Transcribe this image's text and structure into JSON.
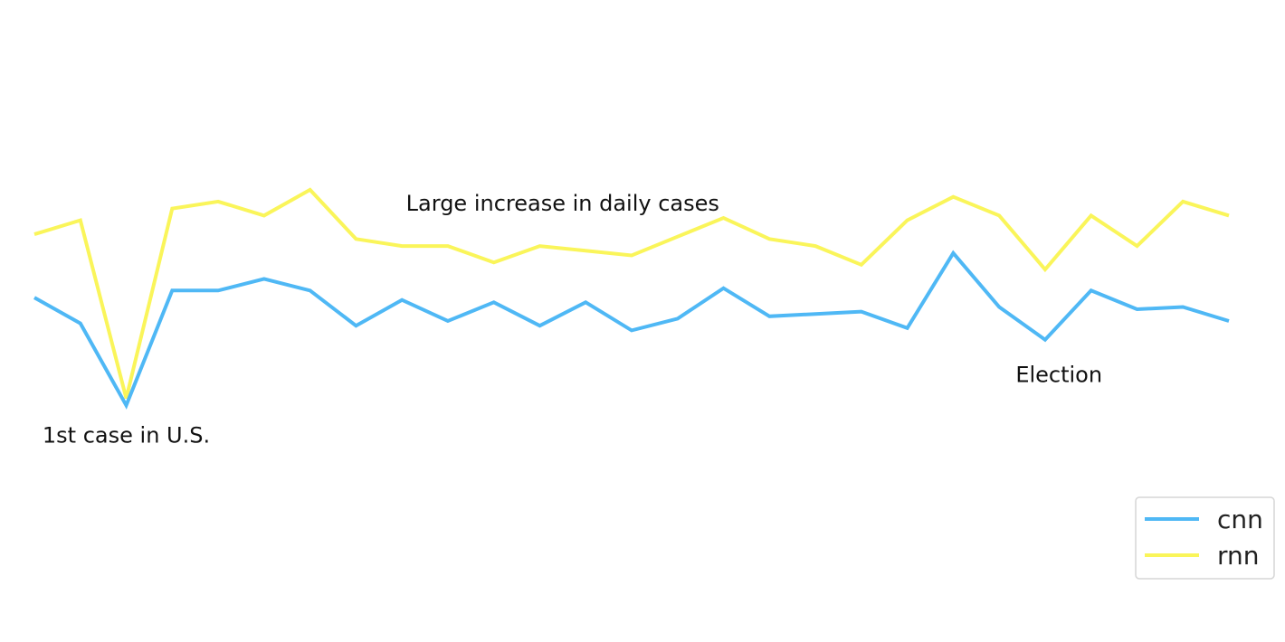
{
  "chart_data": {
    "type": "line",
    "x": [
      1,
      2,
      3,
      4,
      5,
      6,
      7,
      8,
      9,
      10,
      11,
      12,
      13,
      14,
      15,
      16,
      17,
      18,
      19,
      20,
      21,
      22,
      23,
      24,
      25,
      26,
      27
    ],
    "series": [
      {
        "name": "cnn",
        "color": "#4FB8F5",
        "values": [
          0.6,
          0.49,
          0.14,
          0.63,
          0.63,
          0.68,
          0.63,
          0.48,
          0.59,
          0.5,
          0.58,
          0.48,
          0.58,
          0.46,
          0.51,
          0.64,
          0.52,
          0.53,
          0.54,
          0.47,
          0.79,
          0.56,
          0.42,
          0.63,
          0.55,
          0.56,
          0.5
        ]
      },
      {
        "name": "rnn",
        "color": "#FAF55A",
        "values": [
          0.87,
          0.93,
          0.17,
          0.98,
          1.01,
          0.95,
          1.06,
          0.85,
          0.82,
          0.82,
          0.75,
          0.82,
          0.8,
          0.78,
          0.86,
          0.94,
          0.85,
          0.82,
          0.74,
          0.93,
          1.03,
          0.95,
          0.72,
          0.95,
          0.82,
          1.01,
          0.95
        ]
      }
    ],
    "annotations": [
      {
        "text": "1st case in U.S.",
        "x": 3,
        "y": -0.02
      },
      {
        "text": "Large increase in daily cases",
        "x": 12.5,
        "y": 0.97
      },
      {
        "text": "Election",
        "x": 23.3,
        "y": 0.24
      }
    ],
    "ylim": [
      -0.6,
      1.6
    ],
    "legend_position": "bottom-right",
    "grid": false,
    "axes_visible": false
  }
}
